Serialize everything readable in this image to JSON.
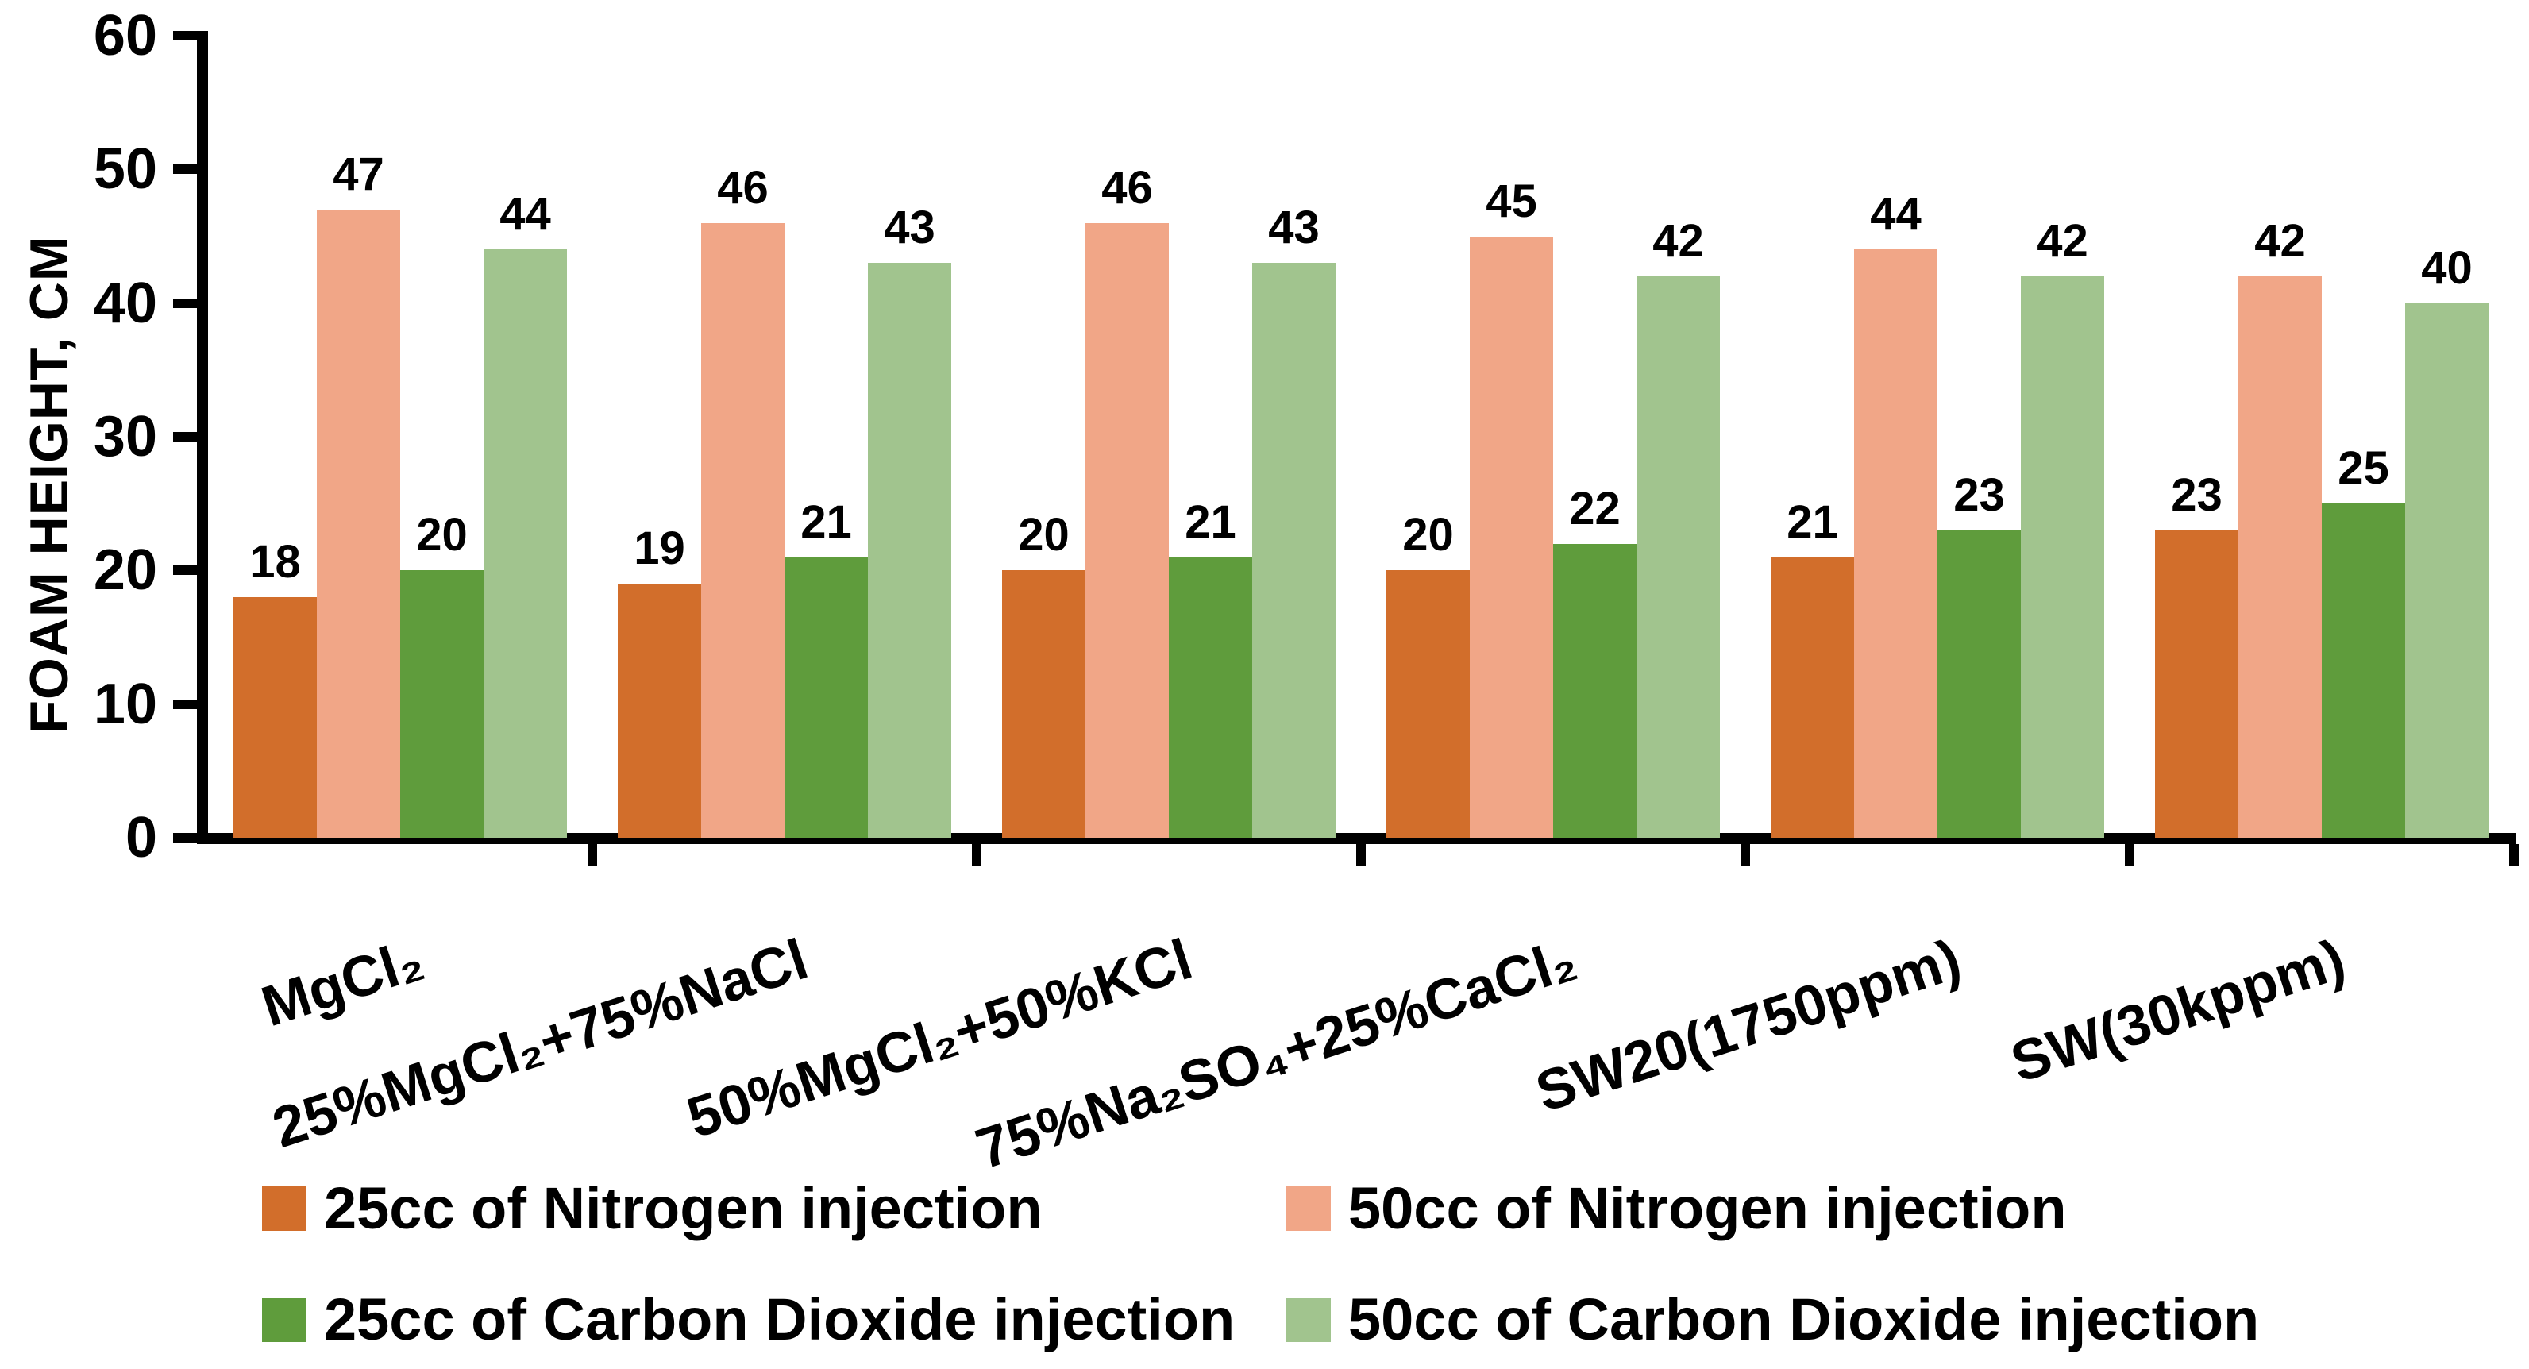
{
  "chart_data": {
    "type": "bar",
    "title": "",
    "xlabel": "",
    "ylabel": "FOAM HEIGHT, CM",
    "ylim": [
      0,
      60
    ],
    "yticks": [
      0,
      10,
      20,
      30,
      40,
      50,
      60
    ],
    "grid": false,
    "legend_position": "bottom",
    "bar_value_labels": true,
    "categories": [
      "MgCl₂",
      "25%MgCl₂+75%NaCl",
      "50%MgCl₂+50%KCl",
      "75%Na₂SO₄+25%CaCl₂",
      "SW20(1750ppm)",
      "SW(30kppm)"
    ],
    "series": [
      {
        "name": "25cc of Nitrogen injection",
        "color": "#D26E2B",
        "values": [
          18,
          19,
          20,
          20,
          21,
          23
        ]
      },
      {
        "name": "50cc of Nitrogen injection",
        "color": "#F1A687",
        "values": [
          47,
          46,
          46,
          45,
          44,
          42
        ]
      },
      {
        "name": "25cc of Carbon Dioxide injection",
        "color": "#5F9C3C",
        "values": [
          20,
          21,
          21,
          22,
          23,
          25
        ]
      },
      {
        "name": "50cc of Carbon Dioxide injection",
        "color": "#A1C48E",
        "values": [
          44,
          43,
          43,
          42,
          42,
          40
        ]
      }
    ]
  },
  "colors": {
    "axis": "#000000",
    "label_text": "#000000",
    "background": "#FFFFFF"
  }
}
